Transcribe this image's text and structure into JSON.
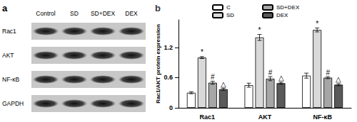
{
  "blot": {
    "label": "a",
    "lanes": [
      "Control",
      "SD",
      "SD+DEX",
      "DEX"
    ],
    "proteins": [
      "Rac1",
      "AKT",
      "NF-κB",
      "GAPDH"
    ]
  },
  "chart_data": {
    "type": "bar",
    "title": "b",
    "y_label": "Rac1/AKT protein expression",
    "categories": [
      "Rac1",
      "AKT",
      "NF-κB"
    ],
    "series": [
      {
        "name": "C",
        "color": "#ffffff",
        "values": [
          0.3,
          0.45,
          0.64
        ],
        "errors": [
          0.02,
          0.04,
          0.05
        ]
      },
      {
        "name": "SD",
        "color": "#d9d9d9",
        "values": [
          1.0,
          1.4,
          1.55
        ],
        "errors": [
          0.02,
          0.06,
          0.04
        ],
        "annotations": [
          "*",
          "*",
          "*"
        ]
      },
      {
        "name": "SD+DEX",
        "color": "#a6a6a6",
        "values": [
          0.5,
          0.58,
          0.6
        ],
        "errors": [
          0.03,
          0.04,
          0.02
        ],
        "annotations": [
          "#",
          "#",
          "#"
        ]
      },
      {
        "name": "DEX",
        "color": "#595959",
        "values": [
          0.37,
          0.49,
          0.46
        ],
        "errors": [
          0.02,
          0.02,
          0.02
        ],
        "annotations": [
          "△",
          "△",
          "△"
        ]
      }
    ],
    "ylim": [
      0,
      1.75
    ],
    "yticks": [
      0,
      0.6,
      1.2
    ],
    "grid": false,
    "legend": "top"
  }
}
